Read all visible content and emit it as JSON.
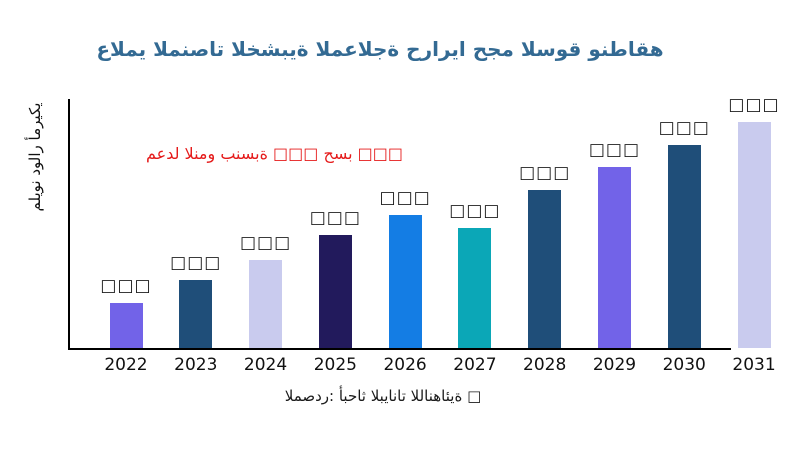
{
  "title": {
    "text": "عالمي المنصات الخشبية المعالجة حراريا حجم السوق ونطاقه",
    "color": "#336a93"
  },
  "annotation": {
    "text": "معدل النمو بنسبة □□□ حسب □□□",
    "color": "#e51a1a"
  },
  "y_axis": {
    "label": "مليون دولار أمريكي"
  },
  "source_note": "المصدر: أبحاث البيانات اللانهائية □",
  "chart_data": {
    "type": "bar",
    "title": "عالمي المنصات الخشبية المعالجة حراريا حجم السوق ونطاقه",
    "xlabel": "",
    "ylabel": "مليون دولار أمريكي",
    "categories": [
      "2022",
      "2023",
      "2024",
      "2025",
      "2026",
      "2027",
      "2028",
      "2029",
      "2030",
      "2031"
    ],
    "value_labels": [
      "□□□",
      "□□□",
      "□□□",
      "□□□",
      "□□□",
      "□□□",
      "□□□",
      "□□□",
      "□□□",
      "□□□"
    ],
    "estimated_relative_values": [
      20,
      30,
      39,
      50,
      59,
      53,
      70,
      80,
      90,
      100
    ],
    "bar_colors": [
      "#7263e8",
      "#1f4e79",
      "#c9cbee",
      "#221a5c",
      "#147de4",
      "#0ba7b7",
      "#1f4e79",
      "#7263e8",
      "#1f4e79",
      "#c9cbee"
    ],
    "annotation": "معدل النمو بنسبة □□□ حسب □□□",
    "source": "المصدر: أبحاث البيانات اللانهائية □",
    "legend": "none",
    "gridlines": false,
    "axis_color": "#000000"
  }
}
